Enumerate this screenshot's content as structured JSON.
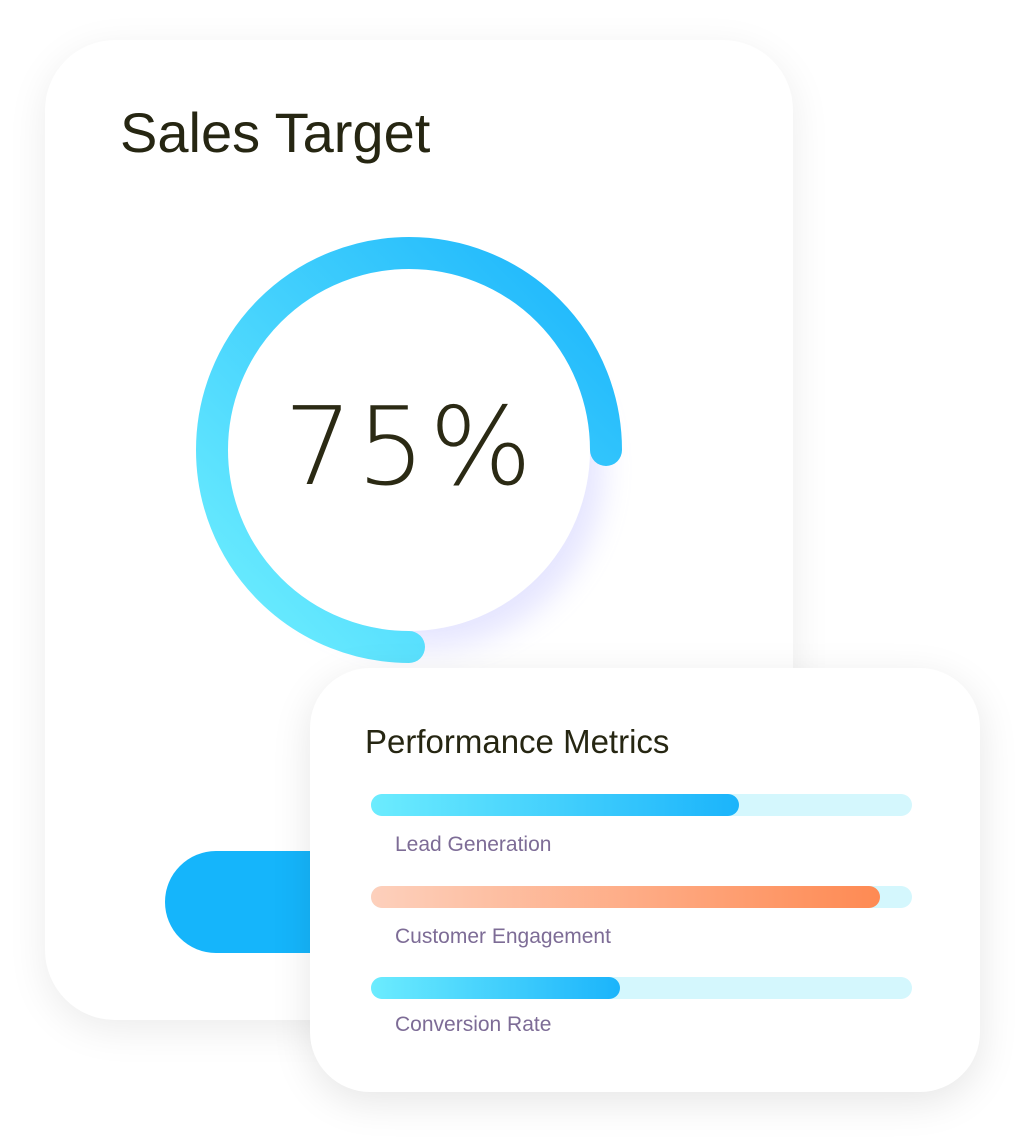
{
  "sales_card": {
    "title": "Sales Target",
    "progress_percent": 75,
    "progress_label": "75%",
    "gauge_colors": {
      "start": "#70f0ff",
      "end": "#1ab4fb"
    },
    "button_color": "#15b5fb"
  },
  "metrics_card": {
    "title": "Performance Metrics",
    "metrics": [
      {
        "label": "Lead Generation",
        "percent": 68,
        "color": "blue"
      },
      {
        "label": "Customer Engagement",
        "percent": 94,
        "color": "orange"
      },
      {
        "label": "Conversion Rate",
        "percent": 46,
        "color": "blue"
      }
    ]
  }
}
